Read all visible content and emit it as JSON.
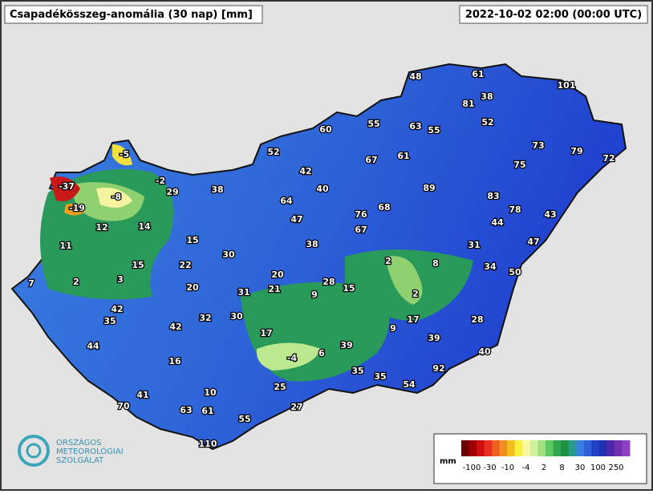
{
  "header": {
    "title": "Csapadékösszeg-anomália (30 nap) [mm]",
    "timestamp": "2022-10-02 02:00 (00:00 UTC)"
  },
  "stations": [
    48,
    61,
    101,
    81,
    38,
    60,
    55,
    63,
    55,
    52,
    73,
    79,
    72,
    52,
    67,
    61,
    75,
    -5,
    -2,
    -37,
    29,
    38,
    42,
    40,
    89,
    83,
    -8,
    -19,
    64,
    76,
    68,
    78,
    43,
    47,
    67,
    44,
    12,
    14,
    15,
    38,
    31,
    47,
    11,
    30,
    2,
    8,
    34,
    15,
    22,
    20,
    50,
    7,
    2,
    3,
    28,
    15,
    20,
    31,
    21,
    9,
    2,
    42,
    35,
    32,
    30,
    42,
    17,
    28,
    9,
    17,
    39,
    44,
    39,
    40,
    -4,
    6,
    16,
    35,
    35,
    92,
    54,
    25,
    10,
    41,
    70,
    63,
    61,
    27,
    55,
    110
  ],
  "legend": {
    "unit": "mm",
    "labels": [
      "-100",
      "-30",
      "-10",
      "-4",
      "2",
      "8",
      "30",
      "100",
      "250"
    ]
  },
  "logo": {
    "lines": [
      "ORSZÁGOS",
      "METEOROLÓGIAI",
      "SZOLGÁLAT"
    ]
  }
}
